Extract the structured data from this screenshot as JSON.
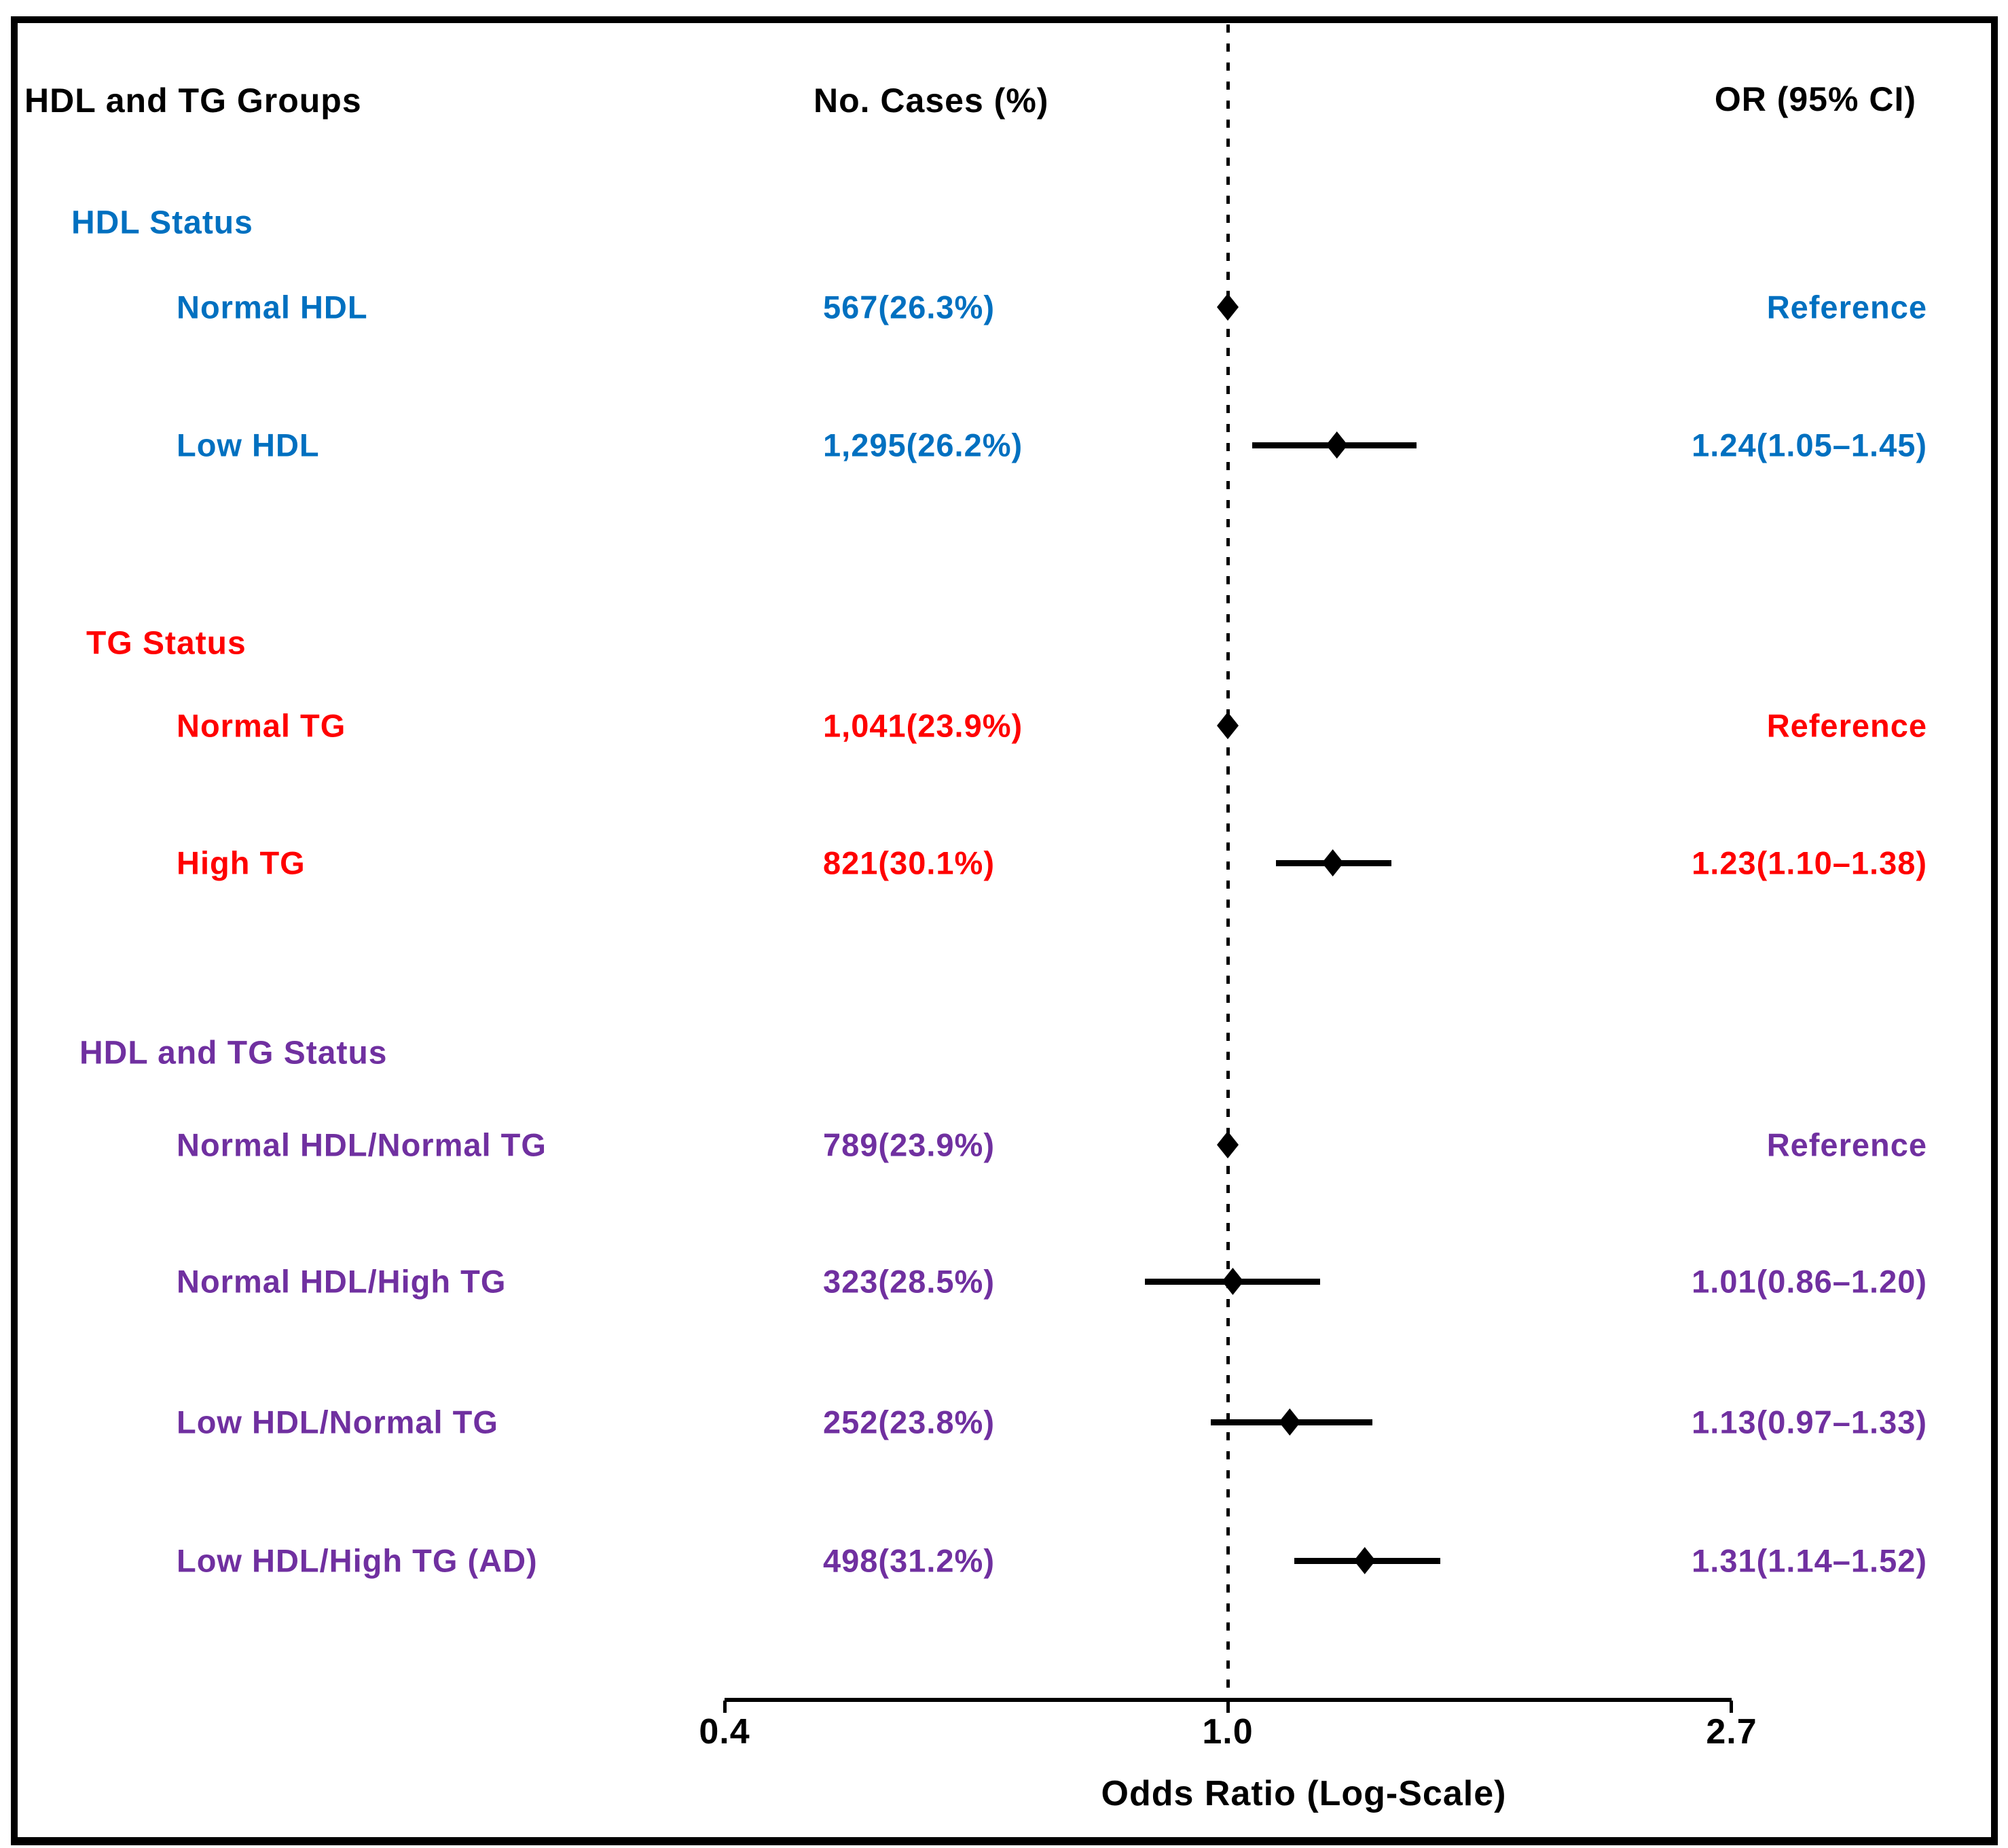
{
  "headers": {
    "groups": "HDL and TG Groups",
    "cases": "No. Cases (%)",
    "or": "OR (95% CI)"
  },
  "axis": {
    "ticks": [
      "0.4",
      "1.0",
      "2.7"
    ],
    "tick_values": [
      0.4,
      1.0,
      2.7
    ],
    "label": "Odds Ratio (Log-Scale)",
    "scale": "log",
    "reference_line": 1.0
  },
  "colors": {
    "hdl_blue": "#0070C0",
    "tg_red": "#FF0000",
    "hdl_tg_purple": "#7030A0",
    "marker_black": "#000000"
  },
  "chart_data": {
    "type": "forest",
    "xlabel": "Odds Ratio (Log-Scale)",
    "x_scale": "log",
    "x_ticks": [
      0.4,
      1.0,
      2.7
    ],
    "xlim": [
      0.4,
      2.7
    ],
    "reference_line": 1.0,
    "columns": [
      "HDL and TG Groups",
      "No. Cases (%)",
      "OR (95% CI)"
    ],
    "groups": [
      {
        "label": "HDL Status",
        "color": "#0070C0",
        "rows": [
          {
            "label": "Normal HDL",
            "cases": "567(26.3%)",
            "or_text": "Reference",
            "ref": true,
            "or": 1.0
          },
          {
            "label": "Low HDL",
            "cases": "1,295(26.2%)",
            "or_text": "1.24(1.05–1.45)",
            "ref": false,
            "or": 1.24,
            "lo": 1.05,
            "hi": 1.45
          }
        ]
      },
      {
        "label": "TG Status",
        "color": "#FF0000",
        "rows": [
          {
            "label": "Normal TG",
            "cases": "1,041(23.9%)",
            "or_text": "Reference",
            "ref": true,
            "or": 1.0
          },
          {
            "label": "High TG",
            "cases": "821(30.1%)",
            "or_text": "1.23(1.10–1.38)",
            "ref": false,
            "or": 1.23,
            "lo": 1.1,
            "hi": 1.38
          }
        ]
      },
      {
        "label": "HDL and TG Status",
        "color": "#7030A0",
        "rows": [
          {
            "label": "Normal HDL/Normal TG",
            "cases": "789(23.9%)",
            "or_text": "Reference",
            "ref": true,
            "or": 1.0
          },
          {
            "label": "Normal HDL/High TG",
            "cases": "323(28.5%)",
            "or_text": "1.01(0.86–1.20)",
            "ref": false,
            "or": 1.01,
            "lo": 0.86,
            "hi": 1.2
          },
          {
            "label": "Low HDL/Normal TG",
            "cases": "252(23.8%)",
            "or_text": "1.13(0.97–1.33)",
            "ref": false,
            "or": 1.13,
            "lo": 0.97,
            "hi": 1.33
          },
          {
            "label": "Low HDL/High TG (AD)",
            "cases": "498(31.2%)",
            "or_text": "1.31(1.14–1.52)",
            "ref": false,
            "or": 1.31,
            "lo": 1.14,
            "hi": 1.52
          }
        ]
      }
    ]
  }
}
